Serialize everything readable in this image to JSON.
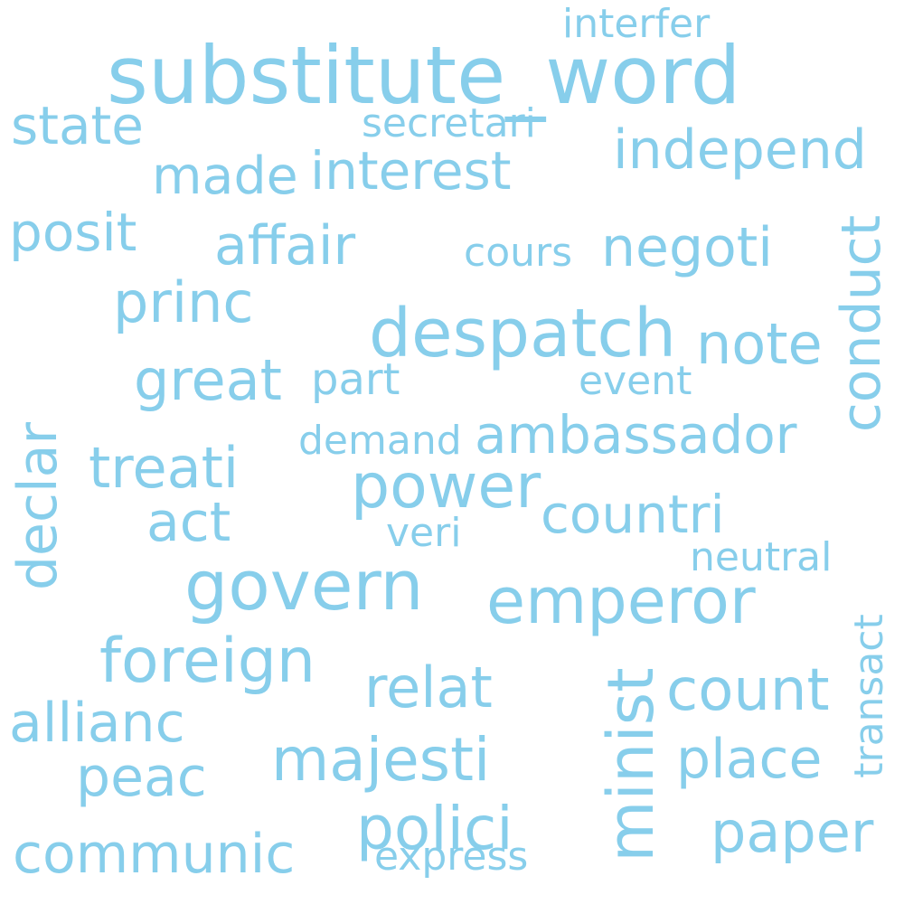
{
  "word_cloud": {
    "color": "#87CEEB",
    "words": {
      "substitute_word": "substitute_word",
      "interfer": "interfer",
      "state": "state",
      "secretari": "secretari",
      "independ": "independ",
      "made": "made",
      "interest": "interest",
      "posit": "posit",
      "affair": "affair",
      "cours": "cours",
      "negoti": "negoti",
      "conduct": "conduct",
      "princ": "princ",
      "despatch": "despatch",
      "note": "note",
      "great": "great",
      "part": "part",
      "event": "event",
      "declar": "declar",
      "demand": "demand",
      "ambassador": "ambassador",
      "treati": "treati",
      "power": "power",
      "act": "act",
      "countri": "countri",
      "veri": "veri",
      "govern": "govern",
      "neutral": "neutral",
      "emperor": "emperor",
      "transact": "transact",
      "foreign": "foreign",
      "relat": "relat",
      "minist": "minist",
      "count": "count",
      "allianc": "allianc",
      "majesti": "majesti",
      "place": "place",
      "peac": "peac",
      "polici": "polici",
      "paper": "paper",
      "communic": "communic",
      "express": "express"
    }
  }
}
